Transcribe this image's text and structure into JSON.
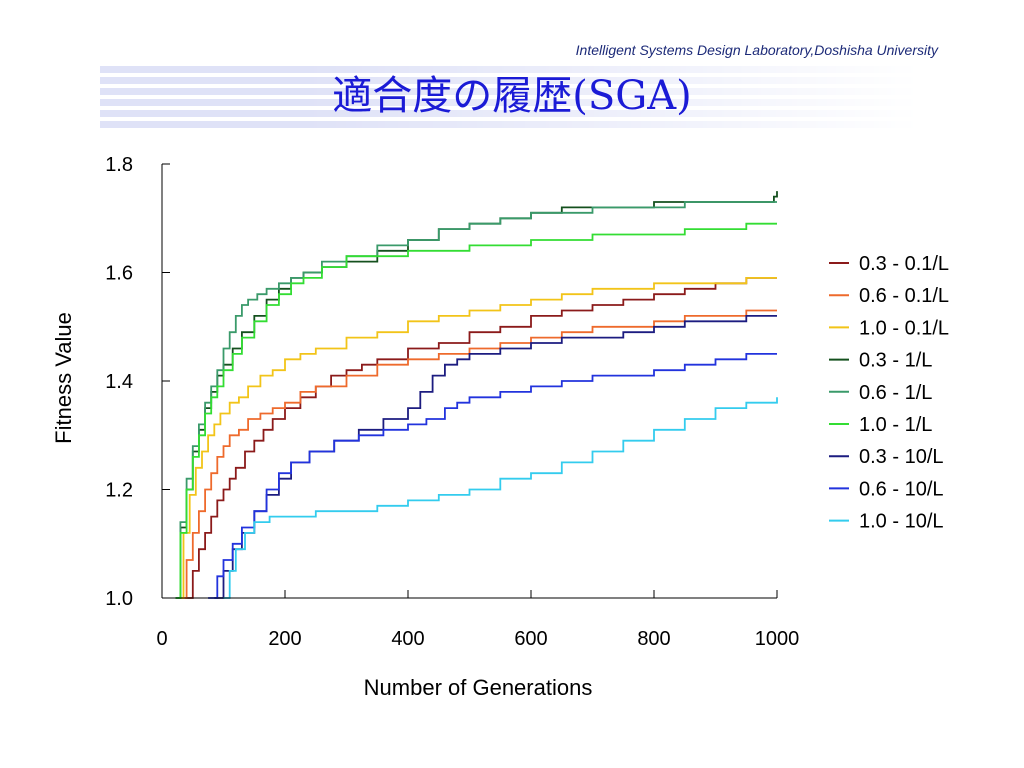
{
  "header": {
    "lab": "Intelligent Systems Design Laboratory,Doshisha University",
    "title": "適合度の履歴(SGA)"
  },
  "chart_data": {
    "type": "line",
    "xlabel": "Number of Generations",
    "ylabel": "Fitness Value",
    "xlim": [
      0,
      1000
    ],
    "ylim": [
      1.0,
      1.8
    ],
    "xticks": [
      0,
      200,
      400,
      600,
      800,
      1000
    ],
    "yticks": [
      1.0,
      1.2,
      1.4,
      1.6,
      1.8
    ],
    "ytick_labels": [
      "1.0",
      "1.2",
      "1.4",
      "1.6",
      "1.8"
    ],
    "grid": false,
    "legend_position": "right",
    "series": [
      {
        "name": "0.3 - 0.1/L",
        "color": "#8b1a1a",
        "x": [
          38,
          50,
          60,
          70,
          80,
          90,
          100,
          110,
          120,
          135,
          150,
          165,
          180,
          200,
          225,
          250,
          275,
          300,
          325,
          350,
          400,
          450,
          500,
          550,
          600,
          650,
          700,
          750,
          800,
          850,
          900,
          950,
          1000
        ],
        "y": [
          1.0,
          1.05,
          1.09,
          1.12,
          1.15,
          1.18,
          1.2,
          1.22,
          1.24,
          1.27,
          1.29,
          1.31,
          1.33,
          1.35,
          1.37,
          1.39,
          1.41,
          1.42,
          1.43,
          1.44,
          1.46,
          1.47,
          1.49,
          1.5,
          1.52,
          1.53,
          1.54,
          1.55,
          1.56,
          1.57,
          1.58,
          1.59,
          1.59
        ]
      },
      {
        "name": "0.6 - 0.1/L",
        "color": "#ee6a2c",
        "x": [
          30,
          40,
          50,
          60,
          70,
          80,
          90,
          100,
          110,
          125,
          140,
          160,
          180,
          200,
          225,
          250,
          300,
          350,
          400,
          450,
          500,
          550,
          600,
          650,
          700,
          750,
          800,
          850,
          900,
          950,
          1000
        ],
        "y": [
          1.0,
          1.07,
          1.12,
          1.16,
          1.2,
          1.23,
          1.26,
          1.28,
          1.3,
          1.31,
          1.33,
          1.34,
          1.35,
          1.36,
          1.38,
          1.39,
          1.41,
          1.43,
          1.44,
          1.45,
          1.46,
          1.47,
          1.48,
          1.49,
          1.5,
          1.5,
          1.51,
          1.52,
          1.52,
          1.53,
          1.53
        ]
      },
      {
        "name": "1.0 - 0.1/L",
        "color": "#f2c418",
        "x": [
          25,
          35,
          45,
          55,
          65,
          75,
          85,
          95,
          110,
          125,
          140,
          160,
          180,
          200,
          225,
          250,
          300,
          350,
          400,
          450,
          500,
          550,
          600,
          650,
          700,
          750,
          800,
          850,
          900,
          950,
          1000
        ],
        "y": [
          1.0,
          1.12,
          1.19,
          1.24,
          1.27,
          1.3,
          1.32,
          1.34,
          1.36,
          1.37,
          1.39,
          1.41,
          1.42,
          1.44,
          1.45,
          1.46,
          1.48,
          1.49,
          1.51,
          1.52,
          1.53,
          1.54,
          1.55,
          1.56,
          1.57,
          1.57,
          1.58,
          1.58,
          1.58,
          1.59,
          1.59
        ]
      },
      {
        "name": "0.3 - 1/L",
        "color": "#14501e",
        "x": [
          22,
          30,
          40,
          50,
          60,
          70,
          80,
          90,
          100,
          115,
          130,
          150,
          170,
          190,
          210,
          230,
          260,
          300,
          350,
          400,
          450,
          500,
          550,
          600,
          650,
          700,
          750,
          800,
          850,
          900,
          950,
          995,
          1000
        ],
        "y": [
          1.0,
          1.13,
          1.2,
          1.27,
          1.31,
          1.35,
          1.38,
          1.41,
          1.43,
          1.46,
          1.49,
          1.52,
          1.55,
          1.57,
          1.59,
          1.6,
          1.61,
          1.62,
          1.64,
          1.66,
          1.68,
          1.69,
          1.7,
          1.71,
          1.72,
          1.72,
          1.72,
          1.73,
          1.73,
          1.73,
          1.73,
          1.74,
          1.75
        ]
      },
      {
        "name": "0.6 - 1/L",
        "color": "#3a9a6a",
        "x": [
          22,
          30,
          40,
          50,
          60,
          70,
          80,
          90,
          100,
          110,
          120,
          130,
          140,
          155,
          170,
          190,
          210,
          230,
          260,
          300,
          350,
          400,
          450,
          500,
          550,
          600,
          650,
          700,
          750,
          800,
          850,
          900,
          950,
          1000
        ],
        "y": [
          1.0,
          1.14,
          1.22,
          1.28,
          1.32,
          1.36,
          1.39,
          1.42,
          1.46,
          1.49,
          1.52,
          1.54,
          1.55,
          1.56,
          1.57,
          1.58,
          1.59,
          1.6,
          1.62,
          1.63,
          1.65,
          1.66,
          1.68,
          1.69,
          1.7,
          1.71,
          1.71,
          1.72,
          1.72,
          1.72,
          1.73,
          1.73,
          1.73,
          1.73
        ]
      },
      {
        "name": "1.0 - 1/L",
        "color": "#33dd33",
        "x": [
          22,
          30,
          40,
          50,
          60,
          70,
          80,
          90,
          100,
          115,
          130,
          150,
          170,
          190,
          210,
          230,
          260,
          300,
          350,
          400,
          450,
          500,
          550,
          600,
          650,
          700,
          750,
          800,
          850,
          900,
          950,
          1000
        ],
        "y": [
          1.0,
          1.12,
          1.2,
          1.26,
          1.3,
          1.34,
          1.37,
          1.39,
          1.42,
          1.45,
          1.48,
          1.51,
          1.54,
          1.56,
          1.58,
          1.59,
          1.61,
          1.63,
          1.63,
          1.64,
          1.64,
          1.65,
          1.65,
          1.66,
          1.66,
          1.67,
          1.67,
          1.67,
          1.68,
          1.68,
          1.69,
          1.69
        ]
      },
      {
        "name": "0.3 - 10/L",
        "color": "#1c1c80",
        "x": [
          85,
          100,
          115,
          130,
          150,
          170,
          190,
          210,
          240,
          280,
          320,
          360,
          400,
          420,
          440,
          460,
          480,
          500,
          550,
          600,
          650,
          700,
          750,
          800,
          850,
          900,
          950,
          1000
        ],
        "y": [
          1.0,
          1.05,
          1.09,
          1.12,
          1.16,
          1.19,
          1.22,
          1.25,
          1.27,
          1.29,
          1.31,
          1.33,
          1.35,
          1.38,
          1.41,
          1.43,
          1.44,
          1.45,
          1.46,
          1.47,
          1.48,
          1.48,
          1.49,
          1.5,
          1.51,
          1.51,
          1.52,
          1.52
        ]
      },
      {
        "name": "0.6 - 10/L",
        "color": "#2233dd",
        "x": [
          75,
          90,
          100,
          115,
          130,
          150,
          170,
          190,
          210,
          240,
          280,
          320,
          360,
          400,
          430,
          460,
          480,
          500,
          550,
          600,
          650,
          700,
          750,
          800,
          850,
          900,
          950,
          1000
        ],
        "y": [
          1.0,
          1.04,
          1.07,
          1.1,
          1.13,
          1.16,
          1.2,
          1.23,
          1.25,
          1.27,
          1.29,
          1.3,
          1.31,
          1.32,
          1.33,
          1.35,
          1.36,
          1.37,
          1.38,
          1.39,
          1.4,
          1.41,
          1.41,
          1.42,
          1.43,
          1.44,
          1.45,
          1.45
        ]
      },
      {
        "name": "1.0 - 10/L",
        "color": "#33ccee",
        "x": [
          100,
          110,
          120,
          135,
          150,
          175,
          200,
          250,
          300,
          350,
          400,
          450,
          500,
          550,
          600,
          650,
          700,
          750,
          800,
          850,
          900,
          950,
          1000
        ],
        "y": [
          1.0,
          1.05,
          1.09,
          1.12,
          1.14,
          1.15,
          1.15,
          1.16,
          1.16,
          1.17,
          1.18,
          1.19,
          1.2,
          1.22,
          1.23,
          1.25,
          1.27,
          1.29,
          1.31,
          1.33,
          1.35,
          1.36,
          1.37
        ]
      }
    ]
  }
}
